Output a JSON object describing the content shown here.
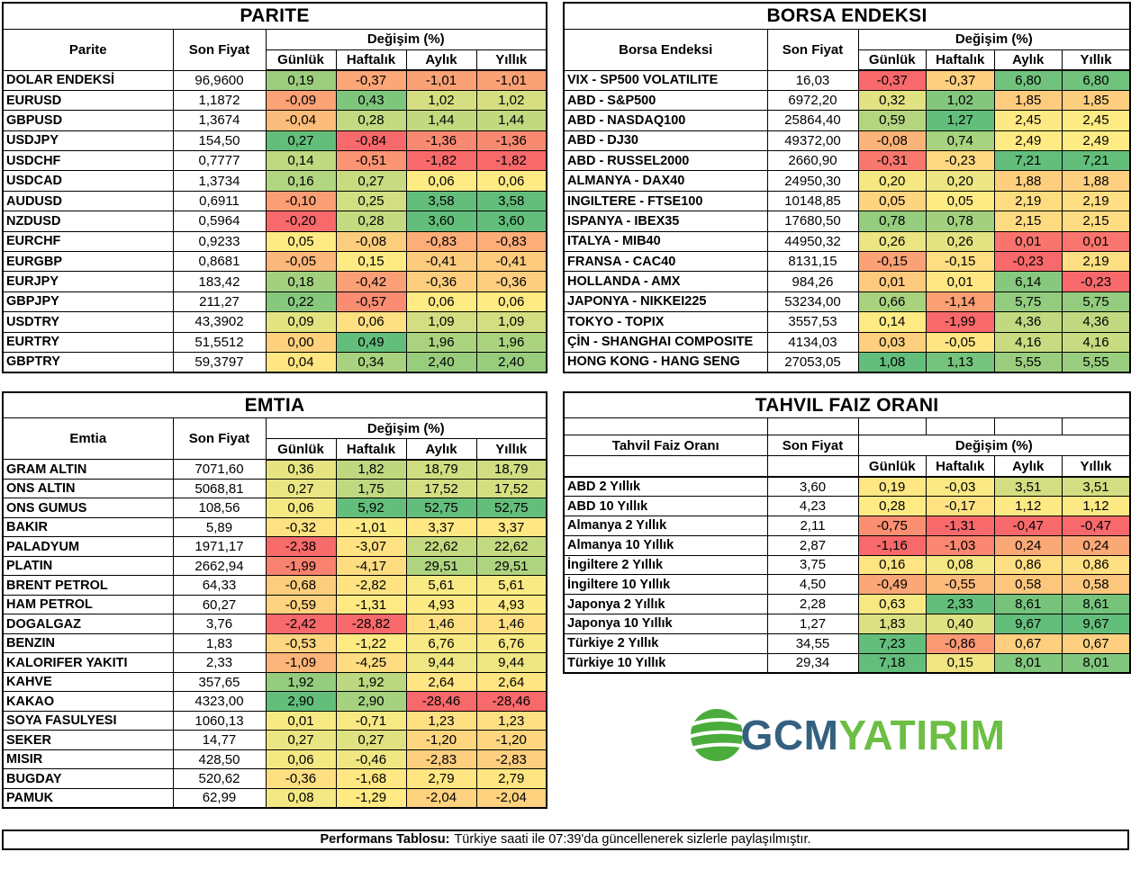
{
  "page": {
    "footer_bold": "Performans Tablosu:",
    "footer_text": "Türkiye saati ile 07:39'da güncellenerek sizlerle paylaşılmıştır."
  },
  "logo": {
    "part1": "GCM",
    "part2": "YATIRIM",
    "part1_color": "#33617F",
    "part2_color": "#6CBE45",
    "globe_color": "#4AAC3B"
  },
  "scale": {
    "min_color": "#F8696B",
    "mid_color": "#FFEB84",
    "max_color": "#63BE7B"
  },
  "tables": [
    {
      "id": "parite",
      "title": "PARITE",
      "name_header": "Parite",
      "price_header": "Son Fiyat",
      "change_header": "Değişim (%)",
      "period_headers": [
        "Günlük",
        "Haftalık",
        "Aylık",
        "Yıllık"
      ],
      "header_style": "merged",
      "rows": [
        {
          "name": "DOLAR ENDEKSİ",
          "price": "96,9600",
          "changes": [
            "0,19",
            "-0,37",
            "-1,01",
            "-1,01"
          ]
        },
        {
          "name": "EURUSD",
          "price": "1,1872",
          "changes": [
            "-0,09",
            "0,43",
            "1,02",
            "1,02"
          ]
        },
        {
          "name": "GBPUSD",
          "price": "1,3674",
          "changes": [
            "-0,04",
            "0,28",
            "1,44",
            "1,44"
          ]
        },
        {
          "name": "USDJPY",
          "price": "154,50",
          "changes": [
            "0,27",
            "-0,84",
            "-1,36",
            "-1,36"
          ]
        },
        {
          "name": "USDCHF",
          "price": "0,7777",
          "changes": [
            "0,14",
            "-0,51",
            "-1,82",
            "-1,82"
          ]
        },
        {
          "name": "USDCAD",
          "price": "1,3734",
          "changes": [
            "0,16",
            "0,27",
            "0,06",
            "0,06"
          ]
        },
        {
          "name": "AUDUSD",
          "price": "0,6911",
          "changes": [
            "-0,10",
            "0,25",
            "3,58",
            "3,58"
          ]
        },
        {
          "name": "NZDUSD",
          "price": "0,5964",
          "changes": [
            "-0,20",
            "0,28",
            "3,60",
            "3,60"
          ]
        },
        {
          "name": "EURCHF",
          "price": "0,9233",
          "changes": [
            "0,05",
            "-0,08",
            "-0,83",
            "-0,83"
          ]
        },
        {
          "name": "EURGBP",
          "price": "0,8681",
          "changes": [
            "-0,05",
            "0,15",
            "-0,41",
            "-0,41"
          ]
        },
        {
          "name": "EURJPY",
          "price": "183,42",
          "changes": [
            "0,18",
            "-0,42",
            "-0,36",
            "-0,36"
          ]
        },
        {
          "name": "GBPJPY",
          "price": "211,27",
          "changes": [
            "0,22",
            "-0,57",
            "0,06",
            "0,06"
          ]
        },
        {
          "name": "USDTRY",
          "price": "43,3902",
          "changes": [
            "0,09",
            "0,06",
            "1,09",
            "1,09"
          ]
        },
        {
          "name": "EURTRY",
          "price": "51,5512",
          "changes": [
            "0,00",
            "0,49",
            "1,96",
            "1,96"
          ]
        },
        {
          "name": "GBPTRY",
          "price": "59,3797",
          "changes": [
            "0,04",
            "0,34",
            "2,40",
            "2,40"
          ]
        }
      ]
    },
    {
      "id": "borsa",
      "title": "BORSA ENDEKSI",
      "name_header": "Borsa Endeksi",
      "price_header": "Son Fiyat",
      "change_header": "Değişim (%)",
      "period_headers": [
        "Günlük",
        "Haftalık",
        "Aylık",
        "Yıllık"
      ],
      "header_style": "merged",
      "rows": [
        {
          "name": "VIX  - SP500 VOLATILITE",
          "price": "16,03",
          "changes": [
            "-0,37",
            "-0,37",
            "6,80",
            "6,80"
          ]
        },
        {
          "name": "ABD - S&P500",
          "price": "6972,20",
          "changes": [
            "0,32",
            "1,02",
            "1,85",
            "1,85"
          ]
        },
        {
          "name": "ABD - NASDAQ100",
          "price": "25864,40",
          "changes": [
            "0,59",
            "1,27",
            "2,45",
            "2,45"
          ]
        },
        {
          "name": "ABD - DJ30",
          "price": "49372,00",
          "changes": [
            "-0,08",
            "0,74",
            "2,49",
            "2,49"
          ]
        },
        {
          "name": "ABD - RUSSEL2000",
          "price": "2660,90",
          "changes": [
            "-0,31",
            "-0,23",
            "7,21",
            "7,21"
          ]
        },
        {
          "name": "ALMANYA - DAX40",
          "price": "24950,30",
          "changes": [
            "0,20",
            "0,20",
            "1,88",
            "1,88"
          ]
        },
        {
          "name": "INGILTERE - FTSE100",
          "price": "10148,85",
          "changes": [
            "0,05",
            "0,05",
            "2,19",
            "2,19"
          ]
        },
        {
          "name": "ISPANYA - IBEX35",
          "price": "17680,50",
          "changes": [
            "0,78",
            "0,78",
            "2,15",
            "2,15"
          ]
        },
        {
          "name": "ITALYA - MIB40",
          "price": "44950,32",
          "changes": [
            "0,26",
            "0,26",
            "0,01",
            "0,01"
          ]
        },
        {
          "name": "FRANSA - CAC40",
          "price": "8131,15",
          "changes": [
            "-0,15",
            "-0,15",
            "-0,23",
            "2,19"
          ]
        },
        {
          "name": "HOLLANDA - AMX",
          "price": "984,26",
          "changes": [
            "0,01",
            "0,01",
            "6,14",
            "-0,23"
          ]
        },
        {
          "name": "JAPONYA - NIKKEI225",
          "price": "53234,00",
          "changes": [
            "0,66",
            "-1,14",
            "5,75",
            "5,75"
          ]
        },
        {
          "name": "TOKYO - TOPIX",
          "price": "3557,53",
          "changes": [
            "0,14",
            "-1,99",
            "4,36",
            "4,36"
          ]
        },
        {
          "name": "ÇİN - SHANGHAI COMPOSITE",
          "price": "4134,03",
          "changes": [
            "0,03",
            "-0,05",
            "4,16",
            "4,16"
          ]
        },
        {
          "name": "HONG KONG - HANG SENG",
          "price": "27053,05",
          "changes": [
            "1,08",
            "1,13",
            "5,55",
            "5,55"
          ]
        }
      ]
    },
    {
      "id": "emtia",
      "title": "EMTIA",
      "name_header": "Emtia",
      "price_header": "Son Fiyat",
      "change_header": "Değişim (%)",
      "period_headers": [
        "Günlük",
        "Haftalık",
        "Aylık",
        "Yıllık"
      ],
      "header_style": "merged",
      "rows": [
        {
          "name": "GRAM ALTIN",
          "price": "7071,60",
          "changes": [
            "0,36",
            "1,82",
            "18,79",
            "18,79"
          ]
        },
        {
          "name": "ONS ALTIN",
          "price": "5068,81",
          "changes": [
            "0,27",
            "1,75",
            "17,52",
            "17,52"
          ]
        },
        {
          "name": "ONS GUMUS",
          "price": "108,56",
          "changes": [
            "0,06",
            "5,92",
            "52,75",
            "52,75"
          ]
        },
        {
          "name": "BAKIR",
          "price": "5,89",
          "changes": [
            "-0,32",
            "-1,01",
            "3,37",
            "3,37"
          ]
        },
        {
          "name": "PALADYUM",
          "price": "1971,17",
          "changes": [
            "-2,38",
            "-3,07",
            "22,62",
            "22,62"
          ]
        },
        {
          "name": "PLATIN",
          "price": "2662,94",
          "changes": [
            "-1,99",
            "-4,17",
            "29,51",
            "29,51"
          ]
        },
        {
          "name": "BRENT PETROL",
          "price": "64,33",
          "changes": [
            "-0,68",
            "-2,82",
            "5,61",
            "5,61"
          ]
        },
        {
          "name": "HAM PETROL",
          "price": "60,27",
          "changes": [
            "-0,59",
            "-1,31",
            "4,93",
            "4,93"
          ]
        },
        {
          "name": "DOGALGAZ",
          "price": "3,76",
          "changes": [
            "-2,42",
            "-28,82",
            "1,46",
            "1,46"
          ]
        },
        {
          "name": "BENZIN",
          "price": "1,83",
          "changes": [
            "-0,53",
            "-1,22",
            "6,76",
            "6,76"
          ]
        },
        {
          "name": "KALORIFER YAKITI",
          "price": "2,33",
          "changes": [
            "-1,09",
            "-4,25",
            "9,44",
            "9,44"
          ]
        },
        {
          "name": "KAHVE",
          "price": "357,65",
          "changes": [
            "1,92",
            "1,92",
            "2,64",
            "2,64"
          ]
        },
        {
          "name": "KAKAO",
          "price": "4323,00",
          "changes": [
            "2,90",
            "2,90",
            "-28,46",
            "-28,46"
          ]
        },
        {
          "name": "SOYA FASULYESI",
          "price": "1060,13",
          "changes": [
            "0,01",
            "-0,71",
            "1,23",
            "1,23"
          ]
        },
        {
          "name": "SEKER",
          "price": "14,77",
          "changes": [
            "0,27",
            "0,27",
            "-1,20",
            "-1,20"
          ]
        },
        {
          "name": "MISIR",
          "price": "428,50",
          "changes": [
            "0,06",
            "-0,46",
            "-2,83",
            "-2,83"
          ]
        },
        {
          "name": "BUGDAY",
          "price": "520,62",
          "changes": [
            "-0,36",
            "-1,68",
            "2,79",
            "2,79"
          ]
        },
        {
          "name": "PAMUK",
          "price": "62,99",
          "changes": [
            "0,08",
            "-1,29",
            "-2,04",
            "-2,04"
          ]
        }
      ]
    },
    {
      "id": "tahvil",
      "title": "TAHVIL FAIZ ORANI",
      "name_header": "Tahvil Faiz Oranı",
      "price_header": "Son Fiyat",
      "change_header": "Değişim (%)",
      "period_headers": [
        "Günlük",
        "Haftalık",
        "Aylık",
        "Yıllık"
      ],
      "header_style": "split",
      "rows": [
        {
          "name": "ABD 2 Yıllık",
          "price": "3,60",
          "changes": [
            "0,19",
            "-0,03",
            "3,51",
            "3,51"
          ]
        },
        {
          "name": "ABD 10 Yıllık",
          "price": "4,23",
          "changes": [
            "0,28",
            "-0,17",
            "1,12",
            "1,12"
          ]
        },
        {
          "name": "Almanya 2 Yıllık",
          "price": "2,11",
          "changes": [
            "-0,75",
            "-1,31",
            "-0,47",
            "-0,47"
          ]
        },
        {
          "name": "Almanya 10 Yıllık",
          "price": "2,87",
          "changes": [
            "-1,16",
            "-1,03",
            "0,24",
            "0,24"
          ]
        },
        {
          "name": "İngiltere 2 Yıllık",
          "price": "3,75",
          "changes": [
            "0,16",
            "0,08",
            "0,86",
            "0,86"
          ]
        },
        {
          "name": "İngiltere 10 Yıllık",
          "price": "4,50",
          "changes": [
            "-0,49",
            "-0,55",
            "0,58",
            "0,58"
          ]
        },
        {
          "name": "Japonya 2 Yıllık",
          "price": "2,28",
          "changes": [
            "0,63",
            "2,33",
            "8,61",
            "8,61"
          ]
        },
        {
          "name": "Japonya 10 Yıllık",
          "price": "1,27",
          "changes": [
            "1,83",
            "0,40",
            "9,67",
            "9,67"
          ]
        },
        {
          "name": "Türkiye 2 Yıllık",
          "price": "34,55",
          "changes": [
            "7,23",
            "-0,86",
            "0,67",
            "0,67"
          ]
        },
        {
          "name": "Türkiye 10 Yıllık",
          "price": "29,34",
          "changes": [
            "7,18",
            "0,15",
            "8,01",
            "8,01"
          ]
        }
      ]
    }
  ]
}
